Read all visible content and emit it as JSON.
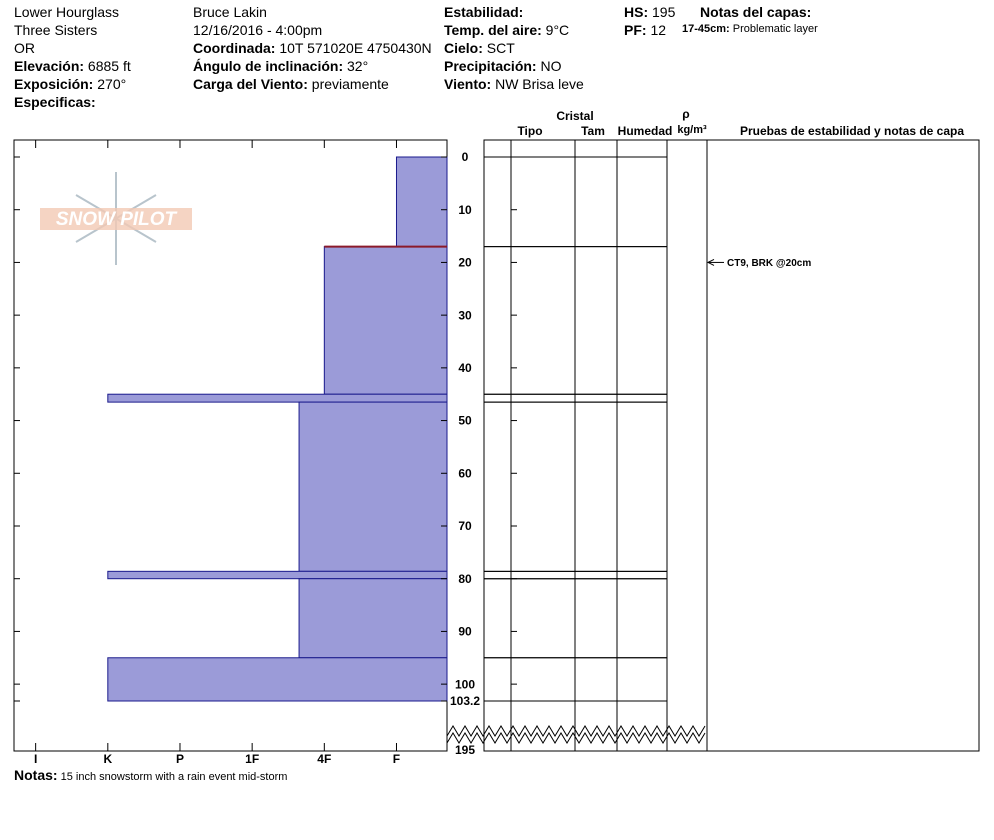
{
  "header": {
    "columns": [
      [
        {
          "value": "Lower Hourglass"
        },
        {
          "value": "Three Sisters"
        },
        {
          "value": "OR"
        },
        {
          "label": "Elevación:",
          "value": "6885 ft"
        },
        {
          "label": "Exposición:",
          "value": "270°"
        },
        {
          "label": "Especificas:"
        }
      ],
      [
        {
          "value": "Bruce Lakin"
        },
        {
          "value": "12/16/2016 - 4:00pm"
        },
        {
          "label": "Coordinada:",
          "value": "10T 571020E 4750430N"
        },
        {
          "label": "Ángulo de inclinación:",
          "value": "32°"
        },
        {
          "label": "Carga del Viento:",
          "value": "previamente"
        }
      ],
      [
        {
          "label": "Estabilidad:"
        },
        {
          "label": "Temp. del aire:",
          "value": "9°C"
        },
        {
          "label": "Cielo:",
          "value": "SCT"
        },
        {
          "label": "Precipitación:",
          "value": "NO"
        },
        {
          "label": "Viento:",
          "value": "NW Brisa leve"
        }
      ],
      [
        {
          "label": "HS:",
          "value": "195"
        },
        {
          "label": "PF:",
          "value": "12"
        }
      ]
    ],
    "layer_notes": {
      "title": "Notas del capas:",
      "range": "17-45cm:",
      "text": "Problematic layer"
    },
    "notes": {
      "label": "Notas:",
      "text": "15 inch snowstorm with a rain event mid-storm"
    },
    "logo": "SNOW PILOT"
  },
  "chart_data": {
    "type": "snow-profile",
    "xticks": [
      {
        "value": 1,
        "label": "I"
      },
      {
        "value": 2,
        "label": "K"
      },
      {
        "value": 3,
        "label": "P"
      },
      {
        "value": 4,
        "label": "1F"
      },
      {
        "value": 5,
        "label": "4F"
      },
      {
        "value": 6,
        "label": "F"
      }
    ],
    "xlim": [
      0.7,
      6.7
    ],
    "ylim": [
      0,
      103.2
    ],
    "yticks": [
      0,
      10,
      20,
      30,
      40,
      50,
      60,
      70,
      80,
      90,
      100,
      103.2
    ],
    "total_depth": 195,
    "color": "#9b9bd8",
    "layers": [
      {
        "top": 0,
        "bottom": 17,
        "hardness": 6
      },
      {
        "top": 17,
        "bottom": 45,
        "hardness": 5
      },
      {
        "top": 45,
        "bottom": 46.5,
        "hardness": 2
      },
      {
        "top": 46.5,
        "bottom": 78.6,
        "hardness": 4.65
      },
      {
        "top": 78.6,
        "bottom": 80,
        "hardness": 2
      },
      {
        "top": 80,
        "bottom": 95,
        "hardness": 4.65
      },
      {
        "top": 95,
        "bottom": 103.2,
        "hardness": 2
      }
    ],
    "concern_depth": 17,
    "concern_color": "#8b1a2a",
    "columns": {
      "crystal": "Cristal",
      "type": "Tipo",
      "size": "Tam",
      "moisture": "Humedad",
      "rho": "ρ",
      "density_unit": "kg/m³",
      "tests": "Pruebas de estabilidad y notas de capa"
    },
    "tests": [
      {
        "depth": 20,
        "label": "CT9, BRK @20cm"
      }
    ]
  }
}
